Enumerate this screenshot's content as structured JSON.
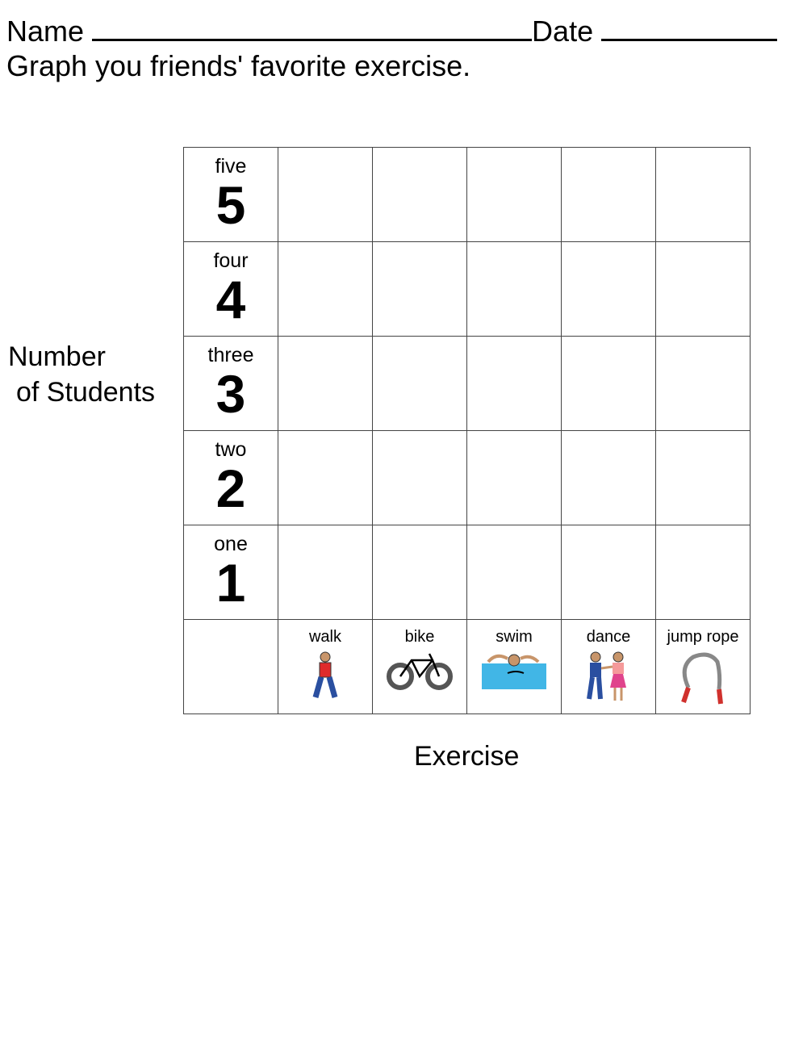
{
  "header": {
    "name_label": "Name",
    "date_label": "Date",
    "instruction": "Graph you friends' favorite exercise."
  },
  "graph": {
    "y_axis_label_line1": "Number",
    "y_axis_label_line2": "of Students",
    "x_axis_label": "Exercise",
    "rows": [
      {
        "word": "five",
        "number": "5"
      },
      {
        "word": "four",
        "number": "4"
      },
      {
        "word": "three",
        "number": "3"
      },
      {
        "word": "two",
        "number": "2"
      },
      {
        "word": "one",
        "number": "1"
      }
    ],
    "exercises": [
      {
        "label": "walk",
        "icon": "walking-person-icon"
      },
      {
        "label": "bike",
        "icon": "bicycle-icon"
      },
      {
        "label": "swim",
        "icon": "swimmer-icon"
      },
      {
        "label": "dance",
        "icon": "dancing-couple-icon"
      },
      {
        "label": "jump rope",
        "icon": "jump-rope-icon"
      }
    ]
  }
}
